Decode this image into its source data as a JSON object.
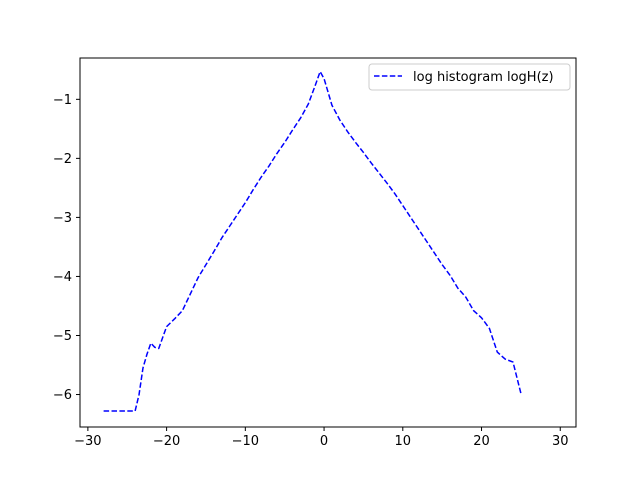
{
  "chart_data": {
    "type": "line",
    "title": "",
    "xlabel": "",
    "ylabel": "",
    "xlim": [
      -31,
      32
    ],
    "ylim": [
      -6.55,
      -0.3
    ],
    "xticks": [
      -30,
      -20,
      -10,
      0,
      10,
      20,
      30
    ],
    "yticks": [
      -1,
      -2,
      -3,
      -4,
      -5,
      -6
    ],
    "xtick_labels": [
      "−30",
      "−20",
      "−10",
      "0",
      "10",
      "20",
      "30"
    ],
    "ytick_labels": [
      "−1",
      "−2",
      "−3",
      "−4",
      "−5",
      "−6"
    ],
    "grid": false,
    "legend": "top-right",
    "series": [
      {
        "name": "log histogram logH(z)",
        "color": "#0000ff",
        "linestyle": "dashed",
        "x": [
          -28,
          -27,
          -26,
          -25,
          -24,
          -23.5,
          -23,
          -22.5,
          -22,
          -21.5,
          -21,
          -20,
          -19,
          -18,
          -17,
          -16,
          -15,
          -14,
          -13,
          -12,
          -11,
          -10,
          -9,
          -8,
          -7,
          -6,
          -5,
          -4,
          -3,
          -2,
          -1,
          -0.5,
          0,
          1,
          2,
          3,
          4,
          5,
          6,
          7,
          8,
          9,
          10,
          11,
          12,
          13,
          14,
          15,
          16,
          17,
          18,
          19,
          20,
          21,
          22,
          23,
          24,
          25
        ],
        "y": [
          -6.28,
          -6.28,
          -6.28,
          -6.28,
          -6.28,
          -6.0,
          -5.55,
          -5.32,
          -5.13,
          -5.2,
          -5.22,
          -4.85,
          -4.72,
          -4.58,
          -4.3,
          -4.02,
          -3.8,
          -3.58,
          -3.35,
          -3.15,
          -2.95,
          -2.75,
          -2.53,
          -2.32,
          -2.13,
          -1.92,
          -1.73,
          -1.52,
          -1.32,
          -1.08,
          -0.72,
          -0.53,
          -0.65,
          -1.1,
          -1.35,
          -1.55,
          -1.73,
          -1.9,
          -2.08,
          -2.25,
          -2.42,
          -2.6,
          -2.8,
          -3.0,
          -3.2,
          -3.4,
          -3.6,
          -3.8,
          -3.98,
          -4.2,
          -4.35,
          -4.58,
          -4.7,
          -4.88,
          -5.28,
          -5.4,
          -5.45,
          -5.98
        ]
      }
    ]
  }
}
